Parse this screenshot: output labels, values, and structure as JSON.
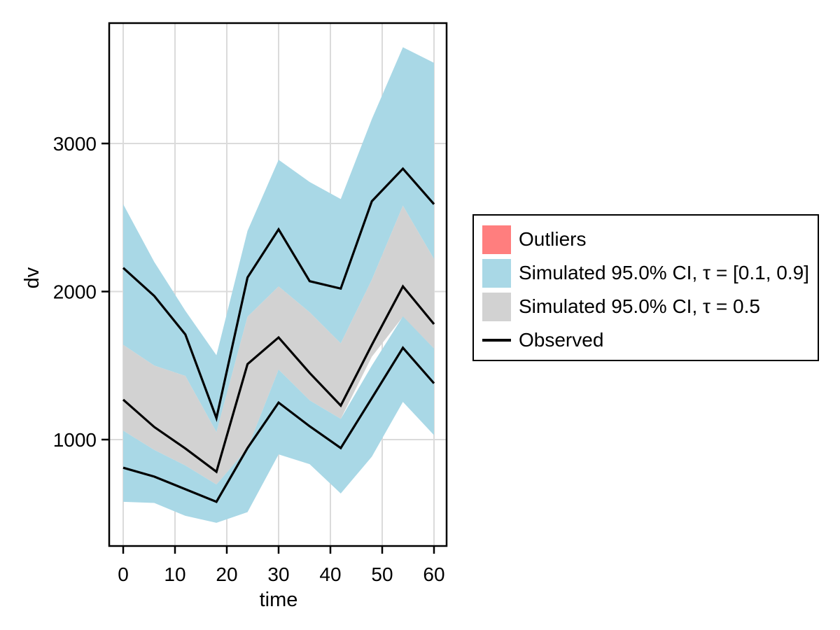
{
  "chart_data": {
    "type": "line",
    "title": "",
    "xlabel": "time",
    "ylabel": "dv",
    "x_ticks": [
      0,
      10,
      20,
      30,
      40,
      50,
      60
    ],
    "y_ticks": [
      1000,
      2000,
      3000
    ],
    "xlim": [
      -2.7,
      62.5
    ],
    "ylim": [
      280,
      3815
    ],
    "grid": true,
    "legend_position": "right-outside",
    "x": [
      0,
      6,
      12,
      18,
      24,
      30,
      36,
      42,
      48,
      54,
      60
    ],
    "bands": [
      {
        "name": "simulated-ci-tau-01-09-upper-band",
        "label": "Simulated 95.0% CI, τ = [0.1, 0.9]",
        "color": "#A9D8E6",
        "upper": [
          2590,
          2200,
          1870,
          1570,
          2410,
          2890,
          2740,
          2625,
          3165,
          3650,
          3545
        ],
        "lower": [
          1640,
          1500,
          1430,
          1050,
          1830,
          2035,
          1860,
          1650,
          2080,
          2580,
          2220
        ]
      },
      {
        "name": "simulated-ci-tau-05-band",
        "label": "Simulated 95.0% CI, τ = 0.5",
        "color": "#D2D2D2",
        "upper": [
          1640,
          1500,
          1430,
          1050,
          1830,
          2035,
          1860,
          1650,
          2080,
          2580,
          2220
        ],
        "lower": [
          1060,
          930,
          825,
          697,
          940,
          1473,
          1265,
          1140,
          1560,
          1830,
          1615
        ]
      },
      {
        "name": "simulated-ci-tau-01-09-lower-band",
        "label": "Simulated 95.0% CI, τ = [0.1, 0.9]",
        "color": "#A9D8E6",
        "upper": [
          1060,
          930,
          825,
          697,
          940,
          1473,
          1265,
          1140,
          1500,
          1832,
          1615
        ],
        "lower": [
          580,
          572,
          485,
          438,
          510,
          900,
          834,
          636,
          885,
          1255,
          1030
        ]
      }
    ],
    "series": [
      {
        "name": "observed-90th-percentile",
        "label": "Observed",
        "color": "#000000",
        "values": [
          2160,
          1970,
          1710,
          1145,
          2095,
          2420,
          2070,
          2020,
          2610,
          2830,
          2590
        ]
      },
      {
        "name": "observed-median",
        "label": "Observed",
        "color": "#000000",
        "values": [
          1270,
          1085,
          940,
          783,
          1510,
          1690,
          1450,
          1230,
          1640,
          2035,
          1780
        ]
      },
      {
        "name": "observed-10th-percentile",
        "label": "Observed",
        "color": "#000000",
        "values": [
          810,
          750,
          665,
          580,
          943,
          1250,
          1090,
          943,
          1280,
          1620,
          1380
        ]
      }
    ]
  },
  "legend": {
    "items": [
      {
        "label": "Outliers",
        "swatch": "square",
        "color": "#FF7E7E"
      },
      {
        "label": "Simulated 95.0% CI, τ = [0.1, 0.9]",
        "swatch": "square",
        "color": "#A9D8E6"
      },
      {
        "label": "Simulated 95.0% CI, τ = 0.5",
        "swatch": "square",
        "color": "#D2D2D2"
      },
      {
        "label": "Observed",
        "swatch": "line",
        "color": "#000000"
      }
    ]
  },
  "colors": {
    "grid": "#DBDBDB",
    "axis": "#000000",
    "background": "#FFFFFF"
  }
}
